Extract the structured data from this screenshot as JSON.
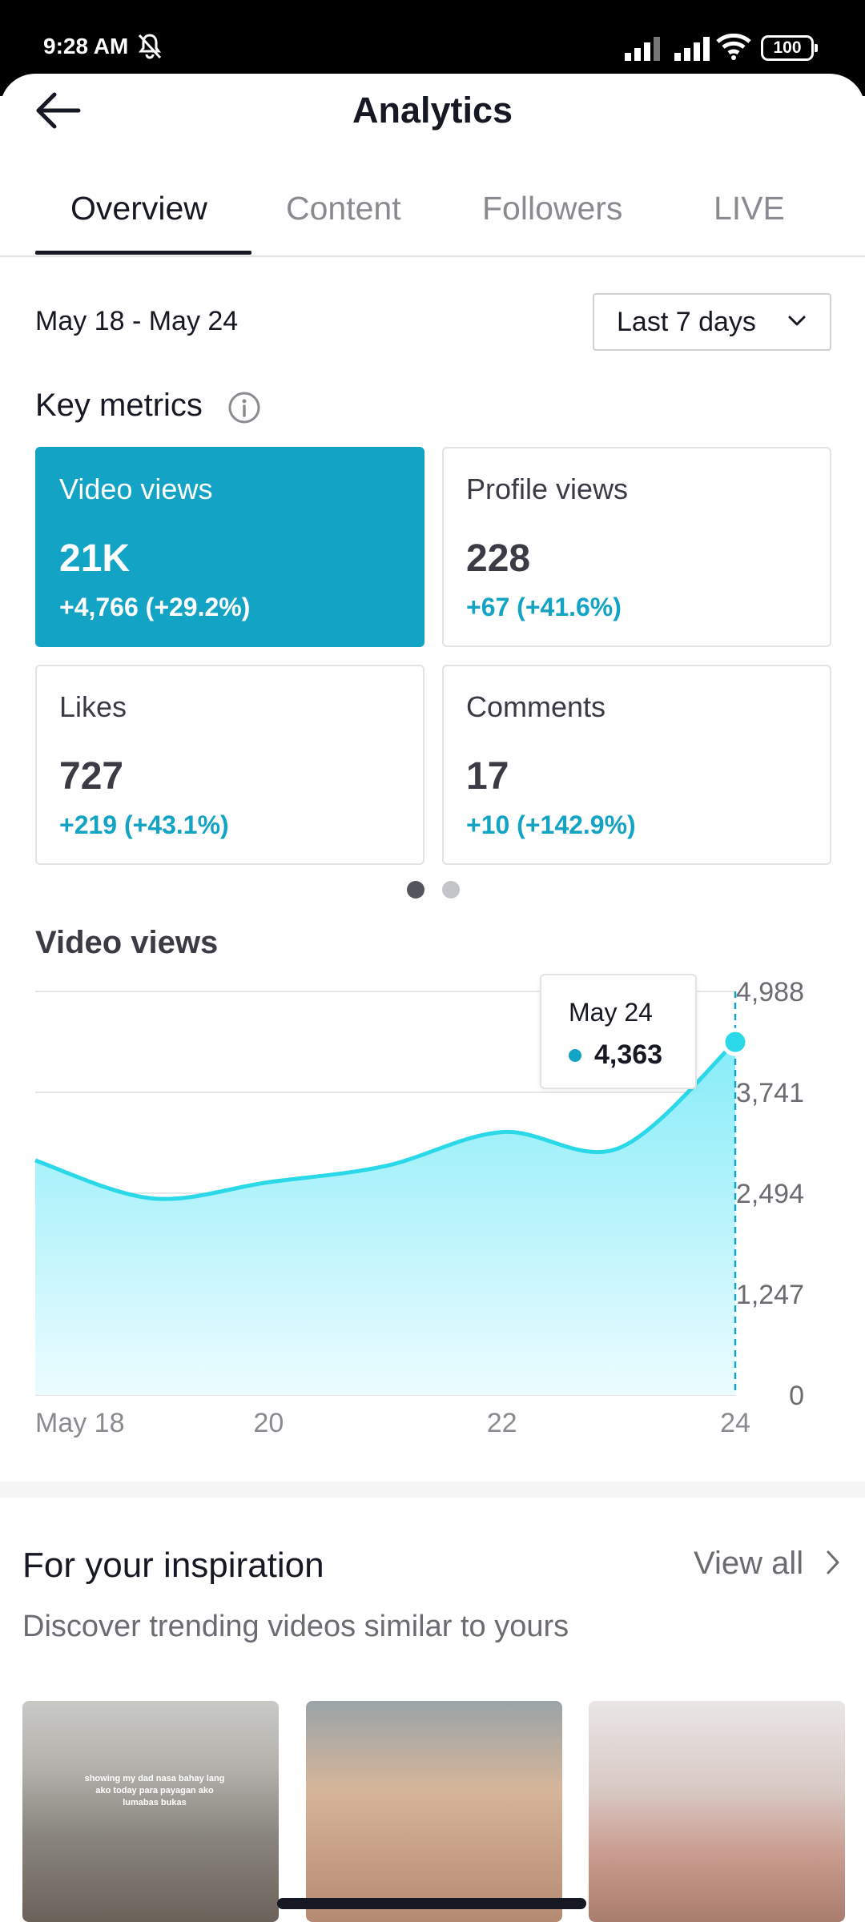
{
  "status_bar": {
    "time": "9:28 AM",
    "battery": "100"
  },
  "header": {
    "title": "Analytics"
  },
  "tabs": [
    {
      "label": "Overview",
      "active": true
    },
    {
      "label": "Content",
      "active": false
    },
    {
      "label": "Followers",
      "active": false
    },
    {
      "label": "LIVE",
      "active": false
    }
  ],
  "date_range": "May 18 - May 24",
  "range_select": {
    "selected": "Last 7 days"
  },
  "key_metrics": {
    "title": "Key metrics",
    "cards": [
      {
        "label": "Video views",
        "value": "21K",
        "delta": "+4,766 (+29.2%)",
        "active": true
      },
      {
        "label": "Profile views",
        "value": "228",
        "delta": "+67 (+41.6%)",
        "active": false
      },
      {
        "label": "Likes",
        "value": "727",
        "delta": "+219 (+43.1%)",
        "active": false
      },
      {
        "label": "Comments",
        "value": "17",
        "delta": "+10 (+142.9%)",
        "active": false
      }
    ],
    "pager": {
      "pages": 2,
      "current": 1
    }
  },
  "video_views_section": {
    "title": "Video views"
  },
  "tooltip": {
    "date": "May 24",
    "value": "4,363"
  },
  "chart_data": {
    "type": "area",
    "x": [
      "May 18",
      "May 19",
      "May 20",
      "May 21",
      "May 22",
      "May 23",
      "May 24"
    ],
    "values": [
      2900,
      2430,
      2630,
      2830,
      3250,
      3050,
      4363
    ],
    "xtick_labels": [
      "May 18",
      "20",
      "22",
      "24"
    ],
    "ytick_labels": [
      "0",
      "1,247",
      "2,494",
      "3,741",
      "4,988"
    ],
    "ylim": [
      0,
      4988
    ],
    "grid": true,
    "colors": {
      "line": "#2ad8e8",
      "fill_top": "#86ecf8",
      "fill_bottom": "#ecfcff",
      "accent": "#13a3c4"
    }
  },
  "inspiration": {
    "title": "For your inspiration",
    "view_all": "View all",
    "subtitle": "Discover trending videos similar to yours",
    "thumbnails": [
      {
        "caption": "showing my dad nasa bahay lang ako today para payagan ako lumabas bukas"
      },
      {
        "caption": ""
      },
      {
        "caption": ""
      }
    ]
  },
  "colors": {
    "accent": "#13a3c4",
    "text_primary": "#161823",
    "text_secondary": "#6b6c72"
  }
}
